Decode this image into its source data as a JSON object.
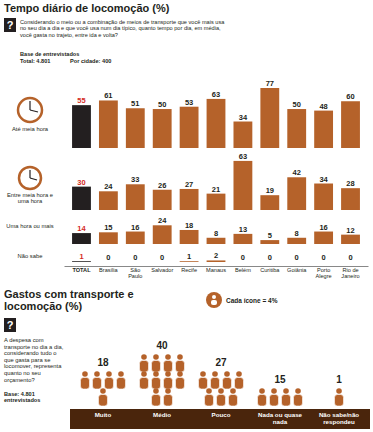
{
  "chart_data": [
    {
      "type": "bar",
      "title": "Tempo diário de locomoção (%)",
      "question": "Considerando o meio ou a combinação de meios de transporte que você mais usa no seu dia a dia e que você usa num dia típico, quanto tempo por dia, em média, você gasta no trajeto, entre ida e volta?",
      "base": "Base de entrevistados",
      "base_total": "Total: 4.801",
      "base_city": "Por cidade: 400",
      "categories": [
        "TOTAL",
        "Brasília",
        "São Paulo",
        "Salvador",
        "Recife",
        "Manaus",
        "Belém",
        "Curitiba",
        "Goiânia",
        "Porto Alegre",
        "Rio de Janeiro"
      ],
      "series": [
        {
          "name": "Até meia hora",
          "values": [
            55,
            61,
            51,
            50,
            53,
            63,
            34,
            77,
            50,
            48,
            60
          ],
          "colors": [
            "#231f20",
            "#b5622a",
            "#b5622a",
            "#b5622a",
            "#b5622a",
            "#b5622a",
            "#b5622a",
            "#b5622a",
            "#b5622a",
            "#b5622a",
            "#b5622a"
          ]
        },
        {
          "name": "Entre meia hora e uma hora",
          "values": [
            30,
            24,
            33,
            26,
            27,
            21,
            63,
            19,
            42,
            34,
            28
          ],
          "colors": [
            "#231f20",
            "#b5622a",
            "#b5622a",
            "#b5622a",
            "#b5622a",
            "#b5622a",
            "#b5622a",
            "#b5622a",
            "#b5622a",
            "#b5622a",
            "#b5622a"
          ]
        },
        {
          "name": "Uma hora ou mais",
          "values": [
            14,
            15,
            16,
            24,
            18,
            8,
            13,
            5,
            8,
            16,
            12
          ],
          "colors": [
            "#231f20",
            "#b5622a",
            "#b5622a",
            "#b5622a",
            "#b5622a",
            "#b5622a",
            "#b5622a",
            "#b5622a",
            "#b5622a",
            "#b5622a",
            "#b5622a"
          ]
        },
        {
          "name": "Não sabe",
          "values": [
            1,
            0,
            0,
            0,
            1,
            2,
            0,
            0,
            0,
            0,
            0
          ],
          "colors": [
            "#231f20",
            "#b5622a",
            "#b5622a",
            "#b5622a",
            "#b5622a",
            "#b5622a",
            "#b5622a",
            "#b5622a",
            "#b5622a",
            "#b5622a",
            "#b5622a"
          ]
        }
      ],
      "data_labels": true,
      "tick_labels": "x"
    },
    {
      "type": "pictogram",
      "title": "Gastos com transporte e locomoção (%)",
      "question": "A despesa com transporte no dia a dia, considerando tudo o que gasta para se locomover, representa quanto no seu orçamento?",
      "base": "Base: 4.801 entrevistados",
      "legend_label": "Cada ícone = 4%",
      "icon_value": 4,
      "categories": [
        "Muito",
        "Médio",
        "Pouco",
        "Nada ou quase nada",
        "Não sabe/não respondeu"
      ],
      "values": [
        18,
        40,
        27,
        15,
        1
      ],
      "color": "#b5622a",
      "data_labels": true
    }
  ]
}
